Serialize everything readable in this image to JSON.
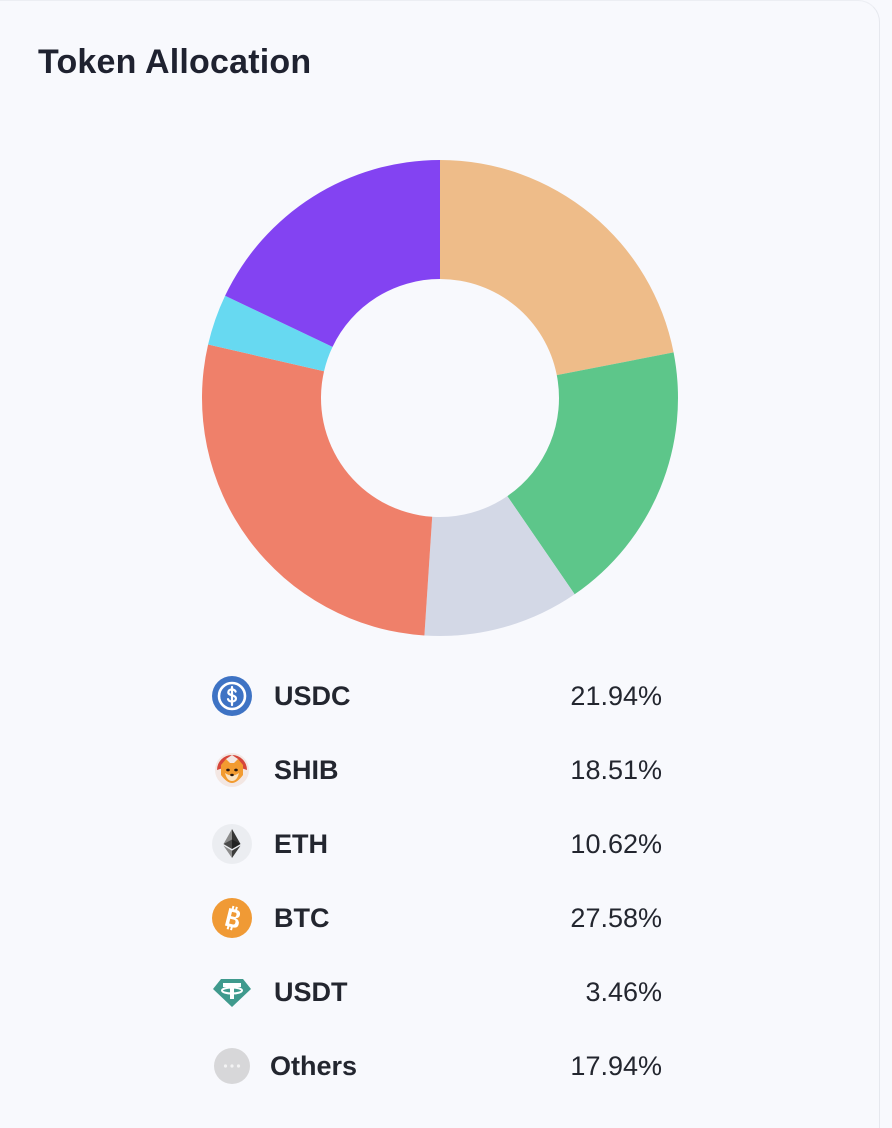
{
  "card": {
    "title": "Token Allocation"
  },
  "chart_data": {
    "type": "pie",
    "title": "Token Allocation",
    "slices": [
      {
        "label": "USDC",
        "value": 21.94,
        "display": "21.94%",
        "color": "#eebc89"
      },
      {
        "label": "SHIB",
        "value": 18.51,
        "display": "18.51%",
        "color": "#5dc68a"
      },
      {
        "label": "ETH",
        "value": 10.62,
        "display": "10.62%",
        "color": "#d3d8e6"
      },
      {
        "label": "BTC",
        "value": 27.58,
        "display": "27.58%",
        "color": "#ef806a"
      },
      {
        "label": "USDT",
        "value": 3.46,
        "display": "3.46%",
        "color": "#67d9f1"
      },
      {
        "label": "Others",
        "value": 17.94,
        "display": "17.94%",
        "color": "#8343f2"
      }
    ],
    "start_angle_deg": 0,
    "direction": "clockwise",
    "legend_position": "bottom"
  },
  "legend": {
    "items": [
      {
        "name": "USDC",
        "value": "21.94%",
        "icon": "usdc-icon"
      },
      {
        "name": "SHIB",
        "value": "18.51%",
        "icon": "shib-icon"
      },
      {
        "name": "ETH",
        "value": "10.62%",
        "icon": "eth-icon"
      },
      {
        "name": "BTC",
        "value": "27.58%",
        "icon": "btc-icon"
      },
      {
        "name": "USDT",
        "value": "3.46%",
        "icon": "usdt-icon"
      },
      {
        "name": "Others",
        "value": "17.94%",
        "icon": "ellipsis-icon"
      }
    ]
  },
  "colors": {
    "usdc": "#3e73c4",
    "btc": "#f09a35",
    "usdt": "#3f9a8d",
    "shib": "#d6463a",
    "others_icon": "#d7d7d9"
  }
}
